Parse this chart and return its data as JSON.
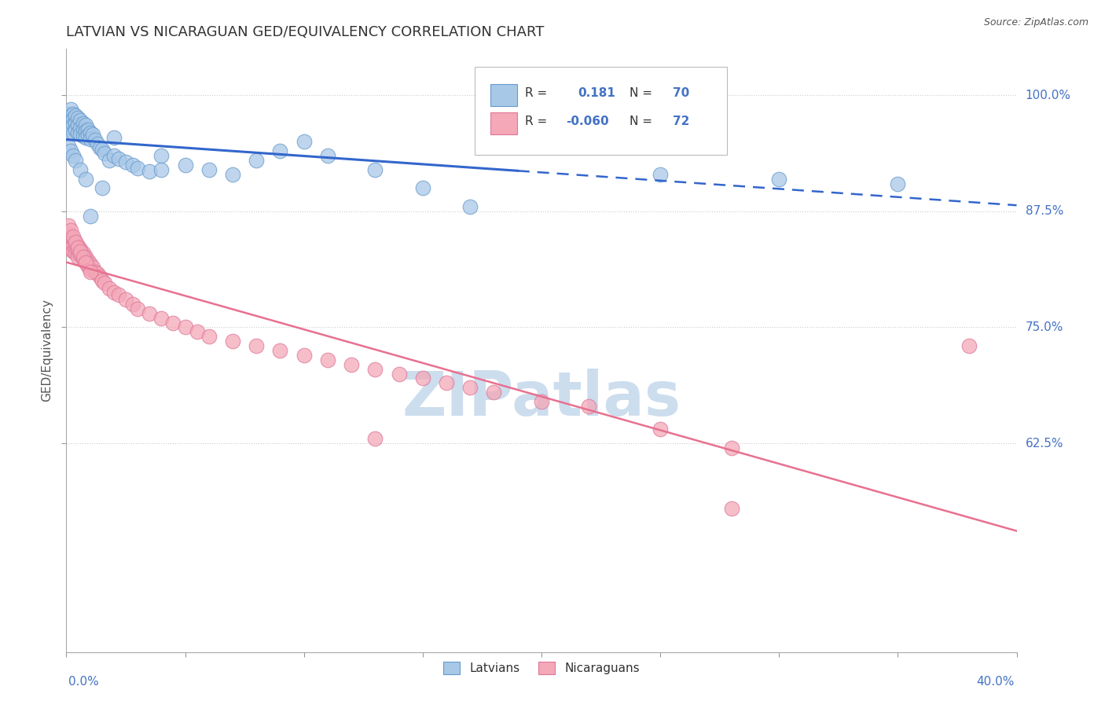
{
  "title": "LATVIAN VS NICARAGUAN GED/EQUIVALENCY CORRELATION CHART",
  "source": "Source: ZipAtlas.com",
  "ylabel": "GED/Equivalency",
  "xmin": 0.0,
  "xmax": 0.4,
  "ymin": 0.4,
  "ymax": 1.05,
  "R_latvian": 0.181,
  "N_latvian": 70,
  "R_nicaraguan": -0.06,
  "N_nicaraguan": 72,
  "latvian_color": "#A8C8E8",
  "latvian_edge_color": "#6699CC",
  "nicaraguan_color": "#F4A8B8",
  "nicaraguan_edge_color": "#DD7799",
  "latvian_line_color": "#3366CC",
  "nicaraguan_line_color": "#E87090",
  "watermark_color": "#CCDDEE",
  "label_color": "#4472C4",
  "ytick_vals": [
    1.0,
    0.875,
    0.75,
    0.625
  ],
  "ytick_labels": [
    "100.0%",
    "87.5%",
    "75.0%",
    "62.5%"
  ],
  "lat_x": [
    0.001,
    0.001,
    0.001,
    0.001,
    0.001,
    0.002,
    0.002,
    0.002,
    0.002,
    0.003,
    0.003,
    0.003,
    0.003,
    0.004,
    0.004,
    0.004,
    0.005,
    0.005,
    0.005,
    0.006,
    0.006,
    0.006,
    0.007,
    0.007,
    0.007,
    0.008,
    0.008,
    0.008,
    0.009,
    0.009,
    0.01,
    0.01,
    0.011,
    0.012,
    0.013,
    0.014,
    0.015,
    0.016,
    0.018,
    0.02,
    0.022,
    0.025,
    0.028,
    0.03,
    0.035,
    0.04,
    0.05,
    0.06,
    0.07,
    0.08,
    0.09,
    0.1,
    0.11,
    0.13,
    0.15,
    0.17,
    0.2,
    0.25,
    0.3,
    0.35,
    0.001,
    0.002,
    0.003,
    0.004,
    0.006,
    0.008,
    0.01,
    0.015,
    0.02,
    0.04
  ],
  "lat_y": [
    0.98,
    0.975,
    0.97,
    0.965,
    0.96,
    0.985,
    0.978,
    0.972,
    0.966,
    0.98,
    0.975,
    0.968,
    0.96,
    0.978,
    0.97,
    0.963,
    0.976,
    0.968,
    0.96,
    0.973,
    0.965,
    0.958,
    0.97,
    0.963,
    0.956,
    0.968,
    0.961,
    0.955,
    0.963,
    0.957,
    0.96,
    0.953,
    0.958,
    0.952,
    0.948,
    0.944,
    0.942,
    0.938,
    0.93,
    0.935,
    0.932,
    0.928,
    0.925,
    0.922,
    0.918,
    0.935,
    0.925,
    0.92,
    0.915,
    0.93,
    0.94,
    0.95,
    0.935,
    0.92,
    0.9,
    0.88,
    0.97,
    0.915,
    0.91,
    0.905,
    0.945,
    0.94,
    0.935,
    0.93,
    0.92,
    0.91,
    0.87,
    0.9,
    0.955,
    0.92
  ],
  "nic_x": [
    0.001,
    0.001,
    0.001,
    0.001,
    0.002,
    0.002,
    0.002,
    0.003,
    0.003,
    0.003,
    0.004,
    0.004,
    0.004,
    0.005,
    0.005,
    0.005,
    0.006,
    0.006,
    0.007,
    0.007,
    0.008,
    0.008,
    0.009,
    0.009,
    0.01,
    0.01,
    0.011,
    0.012,
    0.013,
    0.014,
    0.015,
    0.016,
    0.018,
    0.02,
    0.022,
    0.025,
    0.028,
    0.03,
    0.035,
    0.04,
    0.045,
    0.05,
    0.055,
    0.06,
    0.07,
    0.08,
    0.09,
    0.1,
    0.11,
    0.12,
    0.13,
    0.14,
    0.15,
    0.16,
    0.17,
    0.18,
    0.2,
    0.22,
    0.25,
    0.28,
    0.001,
    0.002,
    0.003,
    0.004,
    0.005,
    0.006,
    0.007,
    0.008,
    0.01,
    0.38,
    0.13,
    0.28
  ],
  "nic_y": [
    0.85,
    0.845,
    0.84,
    0.835,
    0.848,
    0.842,
    0.836,
    0.845,
    0.838,
    0.832,
    0.842,
    0.836,
    0.83,
    0.838,
    0.832,
    0.826,
    0.834,
    0.828,
    0.83,
    0.824,
    0.826,
    0.82,
    0.822,
    0.816,
    0.818,
    0.812,
    0.815,
    0.81,
    0.808,
    0.805,
    0.8,
    0.798,
    0.792,
    0.788,
    0.785,
    0.78,
    0.775,
    0.77,
    0.765,
    0.76,
    0.755,
    0.75,
    0.745,
    0.74,
    0.735,
    0.73,
    0.725,
    0.72,
    0.715,
    0.71,
    0.705,
    0.7,
    0.695,
    0.69,
    0.685,
    0.68,
    0.67,
    0.665,
    0.64,
    0.62,
    0.86,
    0.855,
    0.848,
    0.842,
    0.836,
    0.832,
    0.826,
    0.82,
    0.81,
    0.73,
    0.63,
    0.555
  ]
}
